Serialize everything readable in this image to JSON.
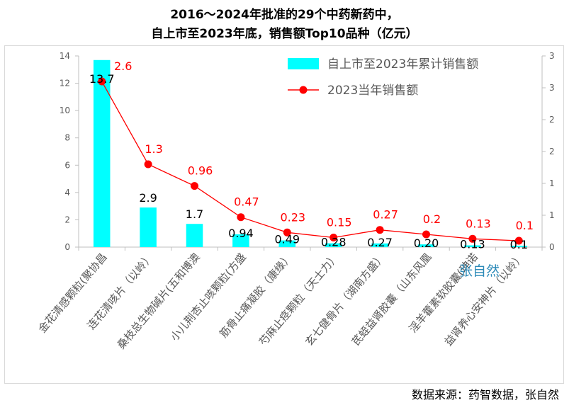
{
  "title_line1": "2016～2024年批准的29个中药新药中，",
  "title_line2": "自上市至2023年底，销售额Top10品种（亿元）",
  "source": "数据来源：药智数据，张自然",
  "watermark": "张自然",
  "colors": {
    "bar": "#00ffff",
    "line": "#ff0000",
    "axis": "#bfbfbf",
    "text": "#595959"
  },
  "chart_data": {
    "type": "bar+line",
    "categories": [
      "金花清感颗粒(聚协昌",
      "连花清咳片（以岭）",
      "桑枝总生物碱片(五和博澳",
      "小儿荆杏止咳颗粒(方盛",
      "筋骨止痛凝胶（康缘）",
      "芍麻止痉颗粒（天士力）",
      "玄七健骨片（湖南方盛）",
      "芪蛭益肾胶囊（山东风凰",
      "淫羊藿素软胶囊(珅诺",
      "益肾养心安神片（以岭）"
    ],
    "series": [
      {
        "name": "自上市至2023年累计销售额",
        "kind": "bar",
        "axis": "left",
        "values": [
          13.7,
          2.9,
          1.7,
          0.94,
          0.49,
          0.28,
          0.27,
          0.2,
          0.13,
          0.1
        ],
        "labels": [
          "13.7",
          "2.9",
          "1.7",
          "0.94",
          "0.49",
          "0.28",
          "0.27",
          "0.20",
          "0.13",
          "0.1"
        ]
      },
      {
        "name": "2023当年销售额",
        "kind": "line",
        "axis": "right",
        "values": [
          2.6,
          1.3,
          0.96,
          0.47,
          0.23,
          0.15,
          0.27,
          0.2,
          0.13,
          0.1
        ],
        "labels": [
          "2.6",
          "1.3",
          "0.96",
          "0.47",
          "0.23",
          "0.15",
          "0.27",
          "0.2",
          "0.13",
          "0.1"
        ]
      }
    ],
    "left_axis": {
      "min": 0,
      "max": 14,
      "ticks": [
        "0",
        "2",
        "4",
        "6",
        "8",
        "10",
        "12",
        "14"
      ]
    },
    "right_axis": {
      "min": 0,
      "max": 3,
      "ticks": [
        "0",
        "1",
        "1",
        "2",
        "2",
        "3",
        "3"
      ]
    },
    "legend_position": "top-right",
    "grid": false
  }
}
